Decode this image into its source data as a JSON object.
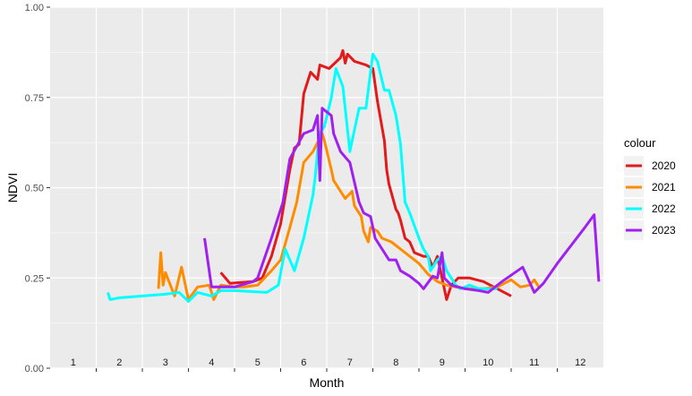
{
  "chart_data": {
    "type": "line",
    "xlabel": "Month",
    "ylabel": "NDVI",
    "ylim": [
      0,
      1
    ],
    "xlim": [
      0.5,
      12.5
    ],
    "y_ticks": [
      "0.00",
      "0.25",
      "0.50",
      "0.75",
      "1.00"
    ],
    "y_tick_values": [
      0,
      0.25,
      0.5,
      0.75,
      1.0
    ],
    "x_tick_labels": [
      "1",
      "2",
      "3",
      "4",
      "5",
      "6",
      "7",
      "8",
      "9",
      "10",
      "11",
      "12"
    ],
    "legend_title": "colour",
    "legend_position": "right",
    "panel_background": "#ebebeb",
    "grid": true,
    "series": [
      {
        "name": "2020",
        "color": "#e31a1c",
        "points": [
          [
            4.2,
            0.265
          ],
          [
            4.4,
            0.235
          ],
          [
            4.9,
            0.24
          ],
          [
            5.1,
            0.25
          ],
          [
            5.3,
            0.31
          ],
          [
            5.5,
            0.4
          ],
          [
            5.7,
            0.55
          ],
          [
            5.8,
            0.61
          ],
          [
            5.9,
            0.62
          ],
          [
            6.0,
            0.76
          ],
          [
            6.15,
            0.82
          ],
          [
            6.3,
            0.8
          ],
          [
            6.35,
            0.84
          ],
          [
            6.55,
            0.83
          ],
          [
            6.8,
            0.86
          ],
          [
            6.85,
            0.88
          ],
          [
            6.9,
            0.845
          ],
          [
            6.95,
            0.87
          ],
          [
            7.1,
            0.85
          ],
          [
            7.35,
            0.84
          ],
          [
            7.5,
            0.83
          ],
          [
            7.6,
            0.74
          ],
          [
            7.75,
            0.63
          ],
          [
            7.8,
            0.55
          ],
          [
            7.85,
            0.51
          ],
          [
            8.0,
            0.44
          ],
          [
            8.05,
            0.43
          ],
          [
            8.1,
            0.41
          ],
          [
            8.2,
            0.36
          ],
          [
            8.3,
            0.35
          ],
          [
            8.4,
            0.32
          ],
          [
            8.6,
            0.31
          ],
          [
            8.7,
            0.31
          ],
          [
            8.8,
            0.28
          ],
          [
            8.9,
            0.31
          ],
          [
            9.0,
            0.25
          ],
          [
            9.1,
            0.19
          ],
          [
            9.2,
            0.23
          ],
          [
            9.35,
            0.25
          ],
          [
            9.6,
            0.25
          ],
          [
            9.9,
            0.24
          ],
          [
            10.2,
            0.22
          ],
          [
            10.5,
            0.2
          ]
        ]
      },
      {
        "name": "2021",
        "color": "#ff8c00",
        "points": [
          [
            2.85,
            0.22
          ],
          [
            2.9,
            0.32
          ],
          [
            2.95,
            0.23
          ],
          [
            3.0,
            0.265
          ],
          [
            3.2,
            0.2
          ],
          [
            3.35,
            0.28
          ],
          [
            3.5,
            0.19
          ],
          [
            3.7,
            0.225
          ],
          [
            3.95,
            0.23
          ],
          [
            4.05,
            0.19
          ],
          [
            4.2,
            0.23
          ],
          [
            4.5,
            0.225
          ],
          [
            4.7,
            0.225
          ],
          [
            5.0,
            0.23
          ],
          [
            5.3,
            0.27
          ],
          [
            5.5,
            0.3
          ],
          [
            5.7,
            0.39
          ],
          [
            5.85,
            0.46
          ],
          [
            6.0,
            0.57
          ],
          [
            6.2,
            0.6
          ],
          [
            6.4,
            0.65
          ],
          [
            6.45,
            0.63
          ],
          [
            6.6,
            0.55
          ],
          [
            6.65,
            0.52
          ],
          [
            6.8,
            0.49
          ],
          [
            6.9,
            0.47
          ],
          [
            7.05,
            0.49
          ],
          [
            7.1,
            0.45
          ],
          [
            7.25,
            0.42
          ],
          [
            7.3,
            0.38
          ],
          [
            7.4,
            0.35
          ],
          [
            7.45,
            0.39
          ],
          [
            7.6,
            0.38
          ],
          [
            7.7,
            0.36
          ],
          [
            7.9,
            0.35
          ],
          [
            8.0,
            0.34
          ],
          [
            8.2,
            0.32
          ],
          [
            8.4,
            0.3
          ],
          [
            8.5,
            0.29
          ],
          [
            8.7,
            0.26
          ],
          [
            8.9,
            0.24
          ],
          [
            9.1,
            0.23
          ],
          [
            9.5,
            0.22
          ],
          [
            9.9,
            0.22
          ],
          [
            10.2,
            0.225
          ],
          [
            10.5,
            0.245
          ],
          [
            10.7,
            0.225
          ],
          [
            10.9,
            0.23
          ],
          [
            11.0,
            0.245
          ],
          [
            11.1,
            0.225
          ]
        ]
      },
      {
        "name": "2022",
        "color": "#00ffff",
        "points": [
          [
            1.75,
            0.21
          ],
          [
            1.8,
            0.19
          ],
          [
            2.0,
            0.195
          ],
          [
            2.5,
            0.2
          ],
          [
            3.0,
            0.205
          ],
          [
            3.3,
            0.21
          ],
          [
            3.5,
            0.185
          ],
          [
            3.7,
            0.21
          ],
          [
            4.0,
            0.2
          ],
          [
            4.2,
            0.215
          ],
          [
            4.5,
            0.215
          ],
          [
            5.2,
            0.21
          ],
          [
            5.45,
            0.23
          ],
          [
            5.6,
            0.33
          ],
          [
            5.8,
            0.27
          ],
          [
            6.0,
            0.36
          ],
          [
            6.2,
            0.48
          ],
          [
            6.25,
            0.53
          ],
          [
            6.3,
            0.6
          ],
          [
            6.35,
            0.65
          ],
          [
            6.45,
            0.67
          ],
          [
            6.6,
            0.75
          ],
          [
            6.7,
            0.83
          ],
          [
            6.85,
            0.78
          ],
          [
            7.0,
            0.6
          ],
          [
            7.2,
            0.72
          ],
          [
            7.35,
            0.72
          ],
          [
            7.5,
            0.87
          ],
          [
            7.6,
            0.85
          ],
          [
            7.75,
            0.77
          ],
          [
            7.85,
            0.77
          ],
          [
            8.0,
            0.7
          ],
          [
            8.1,
            0.62
          ],
          [
            8.2,
            0.46
          ],
          [
            8.3,
            0.43
          ],
          [
            8.5,
            0.36
          ],
          [
            8.6,
            0.33
          ],
          [
            8.7,
            0.31
          ],
          [
            8.75,
            0.27
          ],
          [
            8.9,
            0.3
          ],
          [
            9.0,
            0.31
          ],
          [
            9.1,
            0.27
          ],
          [
            9.3,
            0.23
          ],
          [
            9.4,
            0.22
          ],
          [
            9.6,
            0.23
          ],
          [
            9.8,
            0.22
          ],
          [
            10.2,
            0.22
          ]
        ]
      },
      {
        "name": "2023",
        "color": "#a020f0",
        "points": [
          [
            3.85,
            0.36
          ],
          [
            4.0,
            0.225
          ],
          [
            4.5,
            0.225
          ],
          [
            4.9,
            0.24
          ],
          [
            5.0,
            0.25
          ],
          [
            5.3,
            0.36
          ],
          [
            5.55,
            0.46
          ],
          [
            5.7,
            0.58
          ],
          [
            6.0,
            0.65
          ],
          [
            6.2,
            0.66
          ],
          [
            6.3,
            0.7
          ],
          [
            6.35,
            0.52
          ],
          [
            6.4,
            0.72
          ],
          [
            6.5,
            0.71
          ],
          [
            6.6,
            0.7
          ],
          [
            6.65,
            0.65
          ],
          [
            6.8,
            0.6
          ],
          [
            7.0,
            0.57
          ],
          [
            7.2,
            0.46
          ],
          [
            7.3,
            0.43
          ],
          [
            7.45,
            0.42
          ],
          [
            7.55,
            0.36
          ],
          [
            7.7,
            0.33
          ],
          [
            7.85,
            0.3
          ],
          [
            8.0,
            0.3
          ],
          [
            8.1,
            0.27
          ],
          [
            8.3,
            0.255
          ],
          [
            8.5,
            0.235
          ],
          [
            8.6,
            0.22
          ],
          [
            8.8,
            0.255
          ],
          [
            8.9,
            0.25
          ],
          [
            9.0,
            0.32
          ],
          [
            9.05,
            0.25
          ],
          [
            9.2,
            0.23
          ],
          [
            9.5,
            0.22
          ],
          [
            9.8,
            0.215
          ],
          [
            10.0,
            0.21
          ],
          [
            10.3,
            0.24
          ],
          [
            10.75,
            0.28
          ],
          [
            11.0,
            0.21
          ],
          [
            11.2,
            0.235
          ],
          [
            11.5,
            0.29
          ],
          [
            12.1,
            0.39
          ],
          [
            12.3,
            0.425
          ],
          [
            12.4,
            0.24
          ]
        ]
      }
    ]
  }
}
